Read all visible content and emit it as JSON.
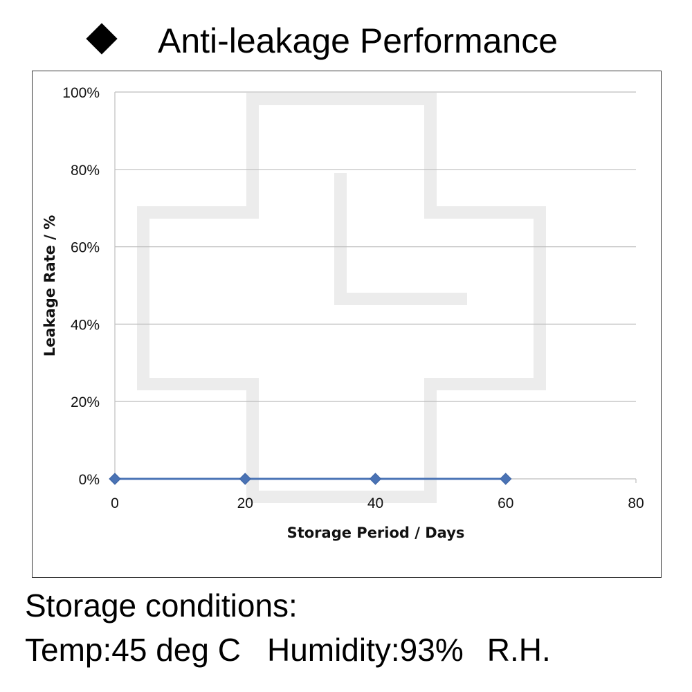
{
  "header": {
    "bullet_icon": "black-diamond-icon",
    "title": "Anti-leakage Performance"
  },
  "chart_data": {
    "type": "line",
    "title": "Anti-leakage Performance",
    "xlabel": "Storage Period / Days",
    "ylabel": "Leakage Rate / %",
    "xlim": [
      0,
      80
    ],
    "ylim": [
      0,
      100
    ],
    "x_ticks": [
      "0",
      "20",
      "40",
      "60",
      "80"
    ],
    "y_ticks": [
      "0%",
      "20%",
      "40%",
      "60%",
      "80%",
      "100%"
    ],
    "grid": true,
    "series": [
      {
        "x": [
          0,
          20,
          40,
          60
        ],
        "values": [
          0,
          0,
          0,
          0
        ],
        "color": "#4a73b5",
        "marker": "diamond"
      }
    ]
  },
  "conditions": {
    "heading": "Storage conditions:",
    "temp": "Temp:45 deg C",
    "humidity": "Humidity:93%",
    "rh": "R.H."
  }
}
